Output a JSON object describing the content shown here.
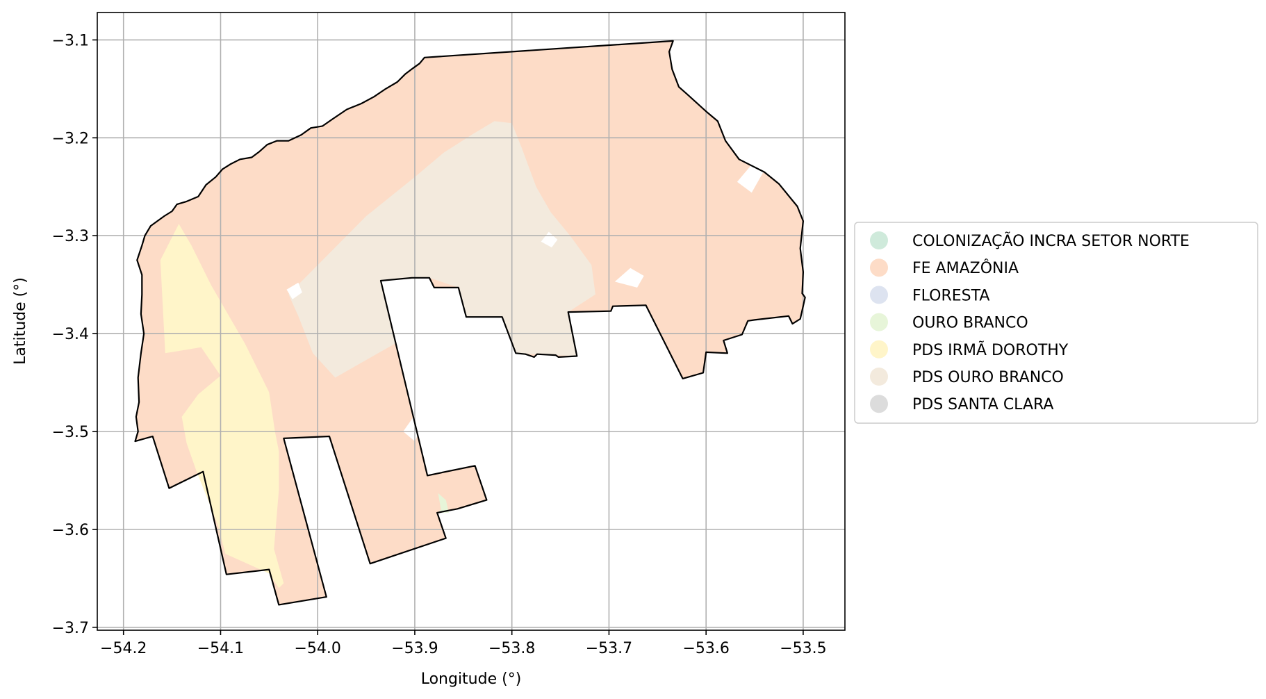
{
  "chart_data": {
    "type": "map",
    "xlabel": "Longitude (°)",
    "ylabel": "Latitude (°)",
    "xlim": [
      -54.227,
      -53.457
    ],
    "ylim": [
      -3.703,
      -3.072
    ],
    "xticks": [
      -54.2,
      -54.1,
      -54.0,
      -53.9,
      -53.8,
      -53.7,
      -53.6,
      -53.5
    ],
    "xtick_labels": [
      "−54.2",
      "−54.1",
      "−54.0",
      "−53.9",
      "−53.8",
      "−53.7",
      "−53.6",
      "−53.5"
    ],
    "yticks": [
      -3.1,
      -3.2,
      -3.3,
      -3.4,
      -3.5,
      -3.6,
      -3.7
    ],
    "ytick_labels": [
      "−3.1",
      "−3.2",
      "−3.3",
      "−3.4",
      "−3.5",
      "−3.6",
      "−3.7"
    ],
    "grid": true,
    "legend_position": "right",
    "legend": [
      {
        "label": "COLONIZAÇÃO INCRA SETOR NORTE",
        "color": "#cfeadb"
      },
      {
        "label": "FE AMAZÔNIA",
        "color": "#fddcc7"
      },
      {
        "label": "FLORESTA",
        "color": "#dde3f0"
      },
      {
        "label": "OURO BRANCO",
        "color": "#e7f5d9"
      },
      {
        "label": "PDS IRMÃ DOROTHY",
        "color": "#fff5c9"
      },
      {
        "label": "PDS OURO BRANCO",
        "color": "#f3eadd"
      },
      {
        "label": "PDS SANTA CLARA",
        "color": "#dcdcdc"
      }
    ],
    "boundary": [
      [
        -53.634,
        -3.101
      ],
      [
        -53.638,
        -3.112
      ],
      [
        -53.635,
        -3.13
      ],
      [
        -53.628,
        -3.148
      ],
      [
        -53.62,
        -3.155
      ],
      [
        -53.6,
        -3.173
      ],
      [
        -53.588,
        -3.183
      ],
      [
        -53.58,
        -3.203
      ],
      [
        -53.566,
        -3.222
      ],
      [
        -53.54,
        -3.235
      ],
      [
        -53.525,
        -3.247
      ],
      [
        -53.506,
        -3.27
      ],
      [
        -53.5,
        -3.285
      ],
      [
        -53.503,
        -3.313
      ],
      [
        -53.5,
        -3.337
      ],
      [
        -53.501,
        -3.359
      ],
      [
        -53.498,
        -3.363
      ],
      [
        -53.503,
        -3.385
      ],
      [
        -53.511,
        -3.39
      ],
      [
        -53.515,
        -3.382
      ],
      [
        -53.55,
        -3.386
      ],
      [
        -53.557,
        -3.387
      ],
      [
        -53.563,
        -3.401
      ],
      [
        -53.582,
        -3.407
      ],
      [
        -53.578,
        -3.42
      ],
      [
        -53.6,
        -3.419
      ],
      [
        -53.603,
        -3.44
      ],
      [
        -53.624,
        -3.446
      ],
      [
        -53.662,
        -3.371
      ],
      [
        -53.696,
        -3.372
      ],
      [
        -53.698,
        -3.377
      ],
      [
        -53.742,
        -3.378
      ],
      [
        -53.733,
        -3.423
      ],
      [
        -53.752,
        -3.424
      ],
      [
        -53.755,
        -3.422
      ],
      [
        -53.774,
        -3.421
      ],
      [
        -53.777,
        -3.424
      ],
      [
        -53.786,
        -3.421
      ],
      [
        -53.796,
        -3.42
      ],
      [
        -53.81,
        -3.383
      ],
      [
        -53.84,
        -3.383
      ],
      [
        -53.847,
        -3.383
      ],
      [
        -53.855,
        -3.353
      ],
      [
        -53.88,
        -3.353
      ],
      [
        -53.885,
        -3.343
      ],
      [
        -53.903,
        -3.343
      ],
      [
        -53.935,
        -3.346
      ],
      [
        -53.887,
        -3.545
      ],
      [
        -53.838,
        -3.535
      ],
      [
        -53.826,
        -3.57
      ],
      [
        -53.856,
        -3.579
      ],
      [
        -53.877,
        -3.583
      ],
      [
        -53.868,
        -3.609
      ],
      [
        -53.946,
        -3.635
      ],
      [
        -53.988,
        -3.505
      ],
      [
        -54.035,
        -3.507
      ],
      [
        -53.991,
        -3.669
      ],
      [
        -54.04,
        -3.677
      ],
      [
        -54.05,
        -3.641
      ],
      [
        -54.094,
        -3.646
      ],
      [
        -54.118,
        -3.541
      ],
      [
        -54.153,
        -3.558
      ],
      [
        -54.17,
        -3.505
      ],
      [
        -54.188,
        -3.51
      ],
      [
        -54.185,
        -3.5
      ],
      [
        -54.187,
        -3.485
      ],
      [
        -54.184,
        -3.47
      ],
      [
        -54.185,
        -3.445
      ],
      [
        -54.182,
        -3.42
      ],
      [
        -54.179,
        -3.4
      ],
      [
        -54.182,
        -3.38
      ],
      [
        -54.181,
        -3.36
      ],
      [
        -54.181,
        -3.34
      ],
      [
        -54.186,
        -3.325
      ],
      [
        -54.181,
        -3.31
      ],
      [
        -54.178,
        -3.3
      ],
      [
        -54.172,
        -3.29
      ],
      [
        -54.158,
        -3.28
      ],
      [
        -54.15,
        -3.275
      ],
      [
        -54.145,
        -3.268
      ],
      [
        -54.135,
        -3.265
      ],
      [
        -54.123,
        -3.26
      ],
      [
        -54.115,
        -3.248
      ],
      [
        -54.105,
        -3.24
      ],
      [
        -54.098,
        -3.232
      ],
      [
        -54.09,
        -3.227
      ],
      [
        -54.08,
        -3.222
      ],
      [
        -54.068,
        -3.22
      ],
      [
        -54.06,
        -3.214
      ],
      [
        -54.052,
        -3.207
      ],
      [
        -54.042,
        -3.203
      ],
      [
        -54.03,
        -3.203
      ],
      [
        -54.017,
        -3.197
      ],
      [
        -54.007,
        -3.19
      ],
      [
        -53.995,
        -3.188
      ],
      [
        -53.985,
        -3.181
      ],
      [
        -53.97,
        -3.171
      ],
      [
        -53.955,
        -3.165
      ],
      [
        -53.942,
        -3.158
      ],
      [
        -53.93,
        -3.15
      ],
      [
        -53.918,
        -3.143
      ],
      [
        -53.91,
        -3.135
      ],
      [
        -53.902,
        -3.129
      ],
      [
        -53.895,
        -3.124
      ],
      [
        -53.89,
        -3.118
      ],
      [
        -53.634,
        -3.101
      ]
    ],
    "regions": [
      {
        "name": "FE AMAZÔNIA",
        "color": "#fddcc7",
        "polygon": "boundary"
      },
      {
        "name": "PDS OURO BRANCO",
        "color": "#f3eadd",
        "polygon": [
          [
            -53.818,
            -3.183
          ],
          [
            -53.8,
            -3.185
          ],
          [
            -53.79,
            -3.21
          ],
          [
            -53.775,
            -3.25
          ],
          [
            -53.76,
            -3.276
          ],
          [
            -53.74,
            -3.3
          ],
          [
            -53.718,
            -3.33
          ],
          [
            -53.714,
            -3.36
          ],
          [
            -53.742,
            -3.378
          ],
          [
            -53.733,
            -3.423
          ],
          [
            -53.796,
            -3.42
          ],
          [
            -53.81,
            -3.383
          ],
          [
            -53.847,
            -3.383
          ],
          [
            -53.855,
            -3.353
          ],
          [
            -53.885,
            -3.343
          ],
          [
            -53.935,
            -3.346
          ],
          [
            -53.92,
            -3.41
          ],
          [
            -53.982,
            -3.445
          ],
          [
            -54.005,
            -3.42
          ],
          [
            -54.02,
            -3.382
          ],
          [
            -54.03,
            -3.36
          ],
          [
            -53.98,
            -3.31
          ],
          [
            -53.95,
            -3.28
          ],
          [
            -53.9,
            -3.24
          ],
          [
            -53.87,
            -3.215
          ],
          [
            -53.84,
            -3.196
          ]
        ]
      },
      {
        "name": "PDS IRMÃ DOROTHY",
        "color": "#fff5c9",
        "polygon": [
          [
            -54.143,
            -3.288
          ],
          [
            -54.162,
            -3.325
          ],
          [
            -54.157,
            -3.42
          ],
          [
            -54.12,
            -3.414
          ],
          [
            -54.1,
            -3.443
          ],
          [
            -54.123,
            -3.462
          ],
          [
            -54.14,
            -3.485
          ],
          [
            -54.135,
            -3.512
          ],
          [
            -54.125,
            -3.54
          ],
          [
            -54.103,
            -3.595
          ],
          [
            -54.095,
            -3.625
          ],
          [
            -54.05,
            -3.645
          ],
          [
            -54.04,
            -3.66
          ],
          [
            -54.035,
            -3.655
          ],
          [
            -54.045,
            -3.62
          ],
          [
            -54.04,
            -3.56
          ],
          [
            -54.04,
            -3.52
          ],
          [
            -54.044,
            -3.5
          ],
          [
            -54.05,
            -3.46
          ],
          [
            -54.075,
            -3.41
          ],
          [
            -54.11,
            -3.35
          ],
          [
            -54.13,
            -3.31
          ]
        ]
      },
      {
        "name": "OURO BRANCO",
        "color": "#e7f5d9",
        "polygon": [
          [
            -53.868,
            -3.57
          ],
          [
            -53.876,
            -3.563
          ],
          [
            -53.873,
            -3.58
          ],
          [
            -53.877,
            -3.583
          ],
          [
            -53.865,
            -3.583
          ]
        ]
      }
    ],
    "gaps": [
      {
        "name": "gap-1",
        "points": [
          [
            -53.77,
            -3.306
          ],
          [
            -53.762,
            -3.296
          ],
          [
            -53.753,
            -3.304
          ],
          [
            -53.759,
            -3.312
          ]
        ]
      },
      {
        "name": "gap-2",
        "points": [
          [
            -53.694,
            -3.347
          ],
          [
            -53.678,
            -3.333
          ],
          [
            -53.664,
            -3.341
          ],
          [
            -53.671,
            -3.353
          ]
        ]
      },
      {
        "name": "gap-3",
        "points": [
          [
            -53.568,
            -3.245
          ],
          [
            -53.551,
            -3.225
          ],
          [
            -53.541,
            -3.235
          ],
          [
            -53.553,
            -3.256
          ]
        ]
      },
      {
        "name": "gap-4",
        "points": [
          [
            -53.655,
            -3.418
          ],
          [
            -53.642,
            -3.41
          ],
          [
            -53.637,
            -3.421
          ],
          [
            -53.648,
            -3.431
          ]
        ]
      },
      {
        "name": "gap-5",
        "points": [
          [
            -53.912,
            -3.5
          ],
          [
            -53.902,
            -3.486
          ],
          [
            -53.892,
            -3.494
          ],
          [
            -53.9,
            -3.51
          ]
        ]
      },
      {
        "name": "gap-6",
        "points": [
          [
            -54.032,
            -3.355
          ],
          [
            -54.02,
            -3.348
          ],
          [
            -54.016,
            -3.358
          ],
          [
            -54.026,
            -3.365
          ]
        ]
      },
      {
        "name": "gap-7",
        "points": [
          [
            -53.822,
            -3.39
          ],
          [
            -53.812,
            -3.385
          ],
          [
            -53.806,
            -3.393
          ],
          [
            -53.815,
            -3.399
          ]
        ]
      }
    ]
  }
}
